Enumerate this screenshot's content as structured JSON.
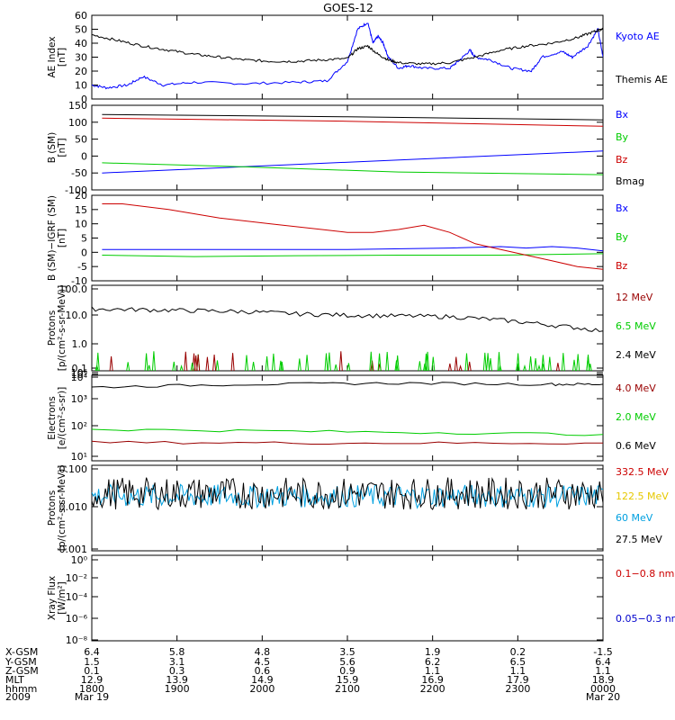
{
  "title": "GOES-12",
  "chart_data": [
    {
      "type": "line",
      "ylabel": [
        "AE Index",
        "[nT]"
      ],
      "ylim": [
        0,
        60
      ],
      "yticks": [
        0,
        10,
        20,
        30,
        40,
        50,
        60
      ],
      "scale": "linear",
      "legend": [
        {
          "label": "Kyoto AE",
          "color": "#0000ff"
        },
        {
          "label": "Themis AE",
          "color": "#000000"
        }
      ],
      "series": [
        {
          "name": "Kyoto AE",
          "color": "#0000ff",
          "x": [
            0,
            0.03,
            0.07,
            0.1,
            0.14,
            0.2,
            0.3,
            0.4,
            0.46,
            0.5,
            0.52,
            0.54,
            0.55,
            0.56,
            0.57,
            0.58,
            0.6,
            0.62,
            0.65,
            0.7,
            0.72,
            0.74,
            0.75,
            0.78,
            0.82,
            0.86,
            0.88,
            0.92,
            0.94,
            0.97,
            0.99,
            1.0
          ],
          "y": [
            10,
            8,
            10,
            16,
            10,
            12,
            11,
            12,
            13,
            27,
            50,
            55,
            40,
            45,
            40,
            30,
            22,
            24,
            22,
            22,
            28,
            35,
            30,
            28,
            22,
            20,
            30,
            34,
            30,
            38,
            50,
            30
          ]
        },
        {
          "name": "Themis AE",
          "color": "#000000",
          "x": [
            0,
            0.05,
            0.1,
            0.15,
            0.2,
            0.25,
            0.3,
            0.35,
            0.4,
            0.45,
            0.5,
            0.52,
            0.54,
            0.56,
            0.58,
            0.6,
            0.65,
            0.7,
            0.75,
            0.8,
            0.85,
            0.9,
            0.95,
            0.98,
            1.0
          ],
          "y": [
            46,
            42,
            38,
            35,
            32,
            30,
            28,
            27,
            27,
            28,
            29,
            36,
            38,
            32,
            28,
            26,
            25,
            26,
            30,
            35,
            38,
            40,
            44,
            48,
            50
          ]
        }
      ]
    },
    {
      "type": "line",
      "ylabel": [
        "B (SM)",
        "[nT]"
      ],
      "ylim": [
        -100,
        150
      ],
      "yticks": [
        -100,
        -50,
        0,
        50,
        100,
        150
      ],
      "scale": "linear",
      "legend": [
        {
          "label": "Bx",
          "color": "#0000ff"
        },
        {
          "label": "By",
          "color": "#00cc00"
        },
        {
          "label": "Bz",
          "color": "#cc0000"
        },
        {
          "label": "Bmag",
          "color": "#000000"
        }
      ],
      "series": [
        {
          "name": "Bx",
          "color": "#0000ff",
          "x": [
            0.02,
            1.0
          ],
          "y": [
            -50,
            15
          ]
        },
        {
          "name": "By",
          "color": "#00cc00",
          "x": [
            0.02,
            0.3,
            0.6,
            1.0
          ],
          "y": [
            -20,
            -32,
            -47,
            -55
          ]
        },
        {
          "name": "Bz",
          "color": "#cc0000",
          "x": [
            0.02,
            0.5,
            1.0
          ],
          "y": [
            112,
            103,
            88
          ]
        },
        {
          "name": "Bmag",
          "color": "#000000",
          "x": [
            0.02,
            0.5,
            1.0
          ],
          "y": [
            123,
            116,
            107
          ]
        }
      ]
    },
    {
      "type": "line",
      "ylabel": [
        "B (SM)−IGRF (SM)",
        "[nT]"
      ],
      "ylim": [
        -10,
        20
      ],
      "yticks": [
        -10,
        -5,
        0,
        5,
        10,
        15,
        20
      ],
      "scale": "linear",
      "legend": [
        {
          "label": "Bx",
          "color": "#0000ff"
        },
        {
          "label": "By",
          "color": "#00cc00"
        },
        {
          "label": "Bz",
          "color": "#cc0000"
        }
      ],
      "series": [
        {
          "name": "Bx",
          "color": "#0000ff",
          "x": [
            0.02,
            0.3,
            0.5,
            0.7,
            0.8,
            0.85,
            0.9,
            0.95,
            1.0
          ],
          "y": [
            1,
            1,
            1,
            1.5,
            2,
            1.5,
            2,
            1.5,
            0.5
          ]
        },
        {
          "name": "By",
          "color": "#00cc00",
          "x": [
            0.02,
            0.2,
            0.4,
            0.6,
            0.8,
            1.0
          ],
          "y": [
            -1,
            -1.5,
            -1.2,
            -1,
            -1,
            -0.5
          ]
        },
        {
          "name": "Bz",
          "color": "#cc0000",
          "x": [
            0.02,
            0.06,
            0.15,
            0.25,
            0.35,
            0.45,
            0.5,
            0.55,
            0.6,
            0.65,
            0.7,
            0.75,
            0.8,
            0.85,
            0.9,
            0.95,
            1.0
          ],
          "y": [
            17,
            17,
            15,
            12,
            10,
            8,
            7,
            7,
            8,
            9.5,
            7,
            3,
            1,
            -1,
            -3,
            -5,
            -6
          ]
        }
      ]
    },
    {
      "type": "line",
      "ylabel": [
        "Protons",
        "[p/(cm²-s-sr-MeV)]"
      ],
      "ylim": [
        0.1,
        100
      ],
      "ytick_labels": [
        "0.1",
        "1.0",
        "10.0",
        "100.0"
      ],
      "scale": "log",
      "legend": [
        {
          "label": "12 MeV",
          "color": "#990000"
        },
        {
          "label": "6.5 MeV",
          "color": "#00cc00"
        },
        {
          "label": "2.4 MeV",
          "color": "#000000"
        }
      ],
      "series": [
        {
          "name": "2.4 MeV",
          "color": "#000000",
          "x": [
            0,
            0.1,
            0.2,
            0.3,
            0.4,
            0.5,
            0.6,
            0.7,
            0.8,
            0.9,
            1.0
          ],
          "y": [
            15,
            14,
            13,
            12,
            10,
            9,
            8.5,
            8,
            6,
            4,
            2.5
          ]
        }
      ]
    },
    {
      "type": "line",
      "ylabel": [
        "Electrons",
        "[e/(cm²-s-sr)]"
      ],
      "ylim": [
        10,
        1000000
      ],
      "ytick_labels": [
        "10¹",
        "10²",
        "10³",
        "10⁴",
        "10⁵",
        "10⁶"
      ],
      "scale": "log",
      "legend": [
        {
          "label": "4.0 MeV",
          "color": "#990000"
        },
        {
          "label": "2.0 MeV",
          "color": "#00cc00"
        },
        {
          "label": "0.6 MeV",
          "color": "#000000"
        }
      ],
      "series": [
        {
          "name": "0.6 MeV",
          "color": "#000000",
          "x": [
            0,
            0.3,
            0.6,
            0.9,
            1.0
          ],
          "y": [
            200000,
            300000,
            350000,
            300000,
            300000
          ]
        },
        {
          "name": "2.0 MeV",
          "color": "#00cc00",
          "x": [
            0,
            0.5,
            1.0
          ],
          "y": [
            700,
            500,
            350
          ]
        },
        {
          "name": "4.0 MeV",
          "color": "#990000",
          "x": [
            0,
            0.5,
            1.0
          ],
          "y": [
            120,
            110,
            110
          ]
        }
      ]
    },
    {
      "type": "line",
      "ylabel": [
        "Protons",
        "[p/(cm²-s-sr-MeV)]"
      ],
      "ylim": [
        0.001,
        0.1
      ],
      "ytick_labels": [
        "0.001",
        "0.010",
        "0.100"
      ],
      "scale": "log",
      "legend": [
        {
          "label": "332.5 MeV",
          "color": "#cc0000"
        },
        {
          "label": "122.5 MeV",
          "color": "#e6c800"
        },
        {
          "label": "60 MeV",
          "color": "#00a0e0"
        },
        {
          "label": "27.5 MeV",
          "color": "#000000"
        }
      ]
    },
    {
      "type": "line",
      "ylabel": [
        "Xray Flux",
        "[W/m²]"
      ],
      "ylim": [
        1e-08,
        1
      ],
      "ytick_labels": [
        "10⁻⁸",
        "10⁻⁶",
        "10⁻⁴",
        "10⁻²",
        "10⁰"
      ],
      "scale": "log",
      "legend": [
        {
          "label": "0.1−0.8 nm",
          "color": "#cc0000"
        },
        {
          "label": "0.05−0.3 nm",
          "color": "#0000cc"
        }
      ],
      "series": []
    }
  ],
  "footer": {
    "row_labels": [
      "X-GSM",
      "Y-GSM",
      "Z-GSM",
      "MLT",
      "hhmm",
      "2009"
    ],
    "columns": [
      [
        "6.4",
        "1.5",
        "0.1",
        "12.9",
        "1800",
        "Mar 19"
      ],
      [
        "5.8",
        "3.1",
        "0.3",
        "13.9",
        "1900",
        ""
      ],
      [
        "4.8",
        "4.5",
        "0.6",
        "14.9",
        "2000",
        ""
      ],
      [
        "3.5",
        "5.6",
        "0.9",
        "15.9",
        "2100",
        ""
      ],
      [
        "1.9",
        "6.2",
        "1.1",
        "16.9",
        "2200",
        ""
      ],
      [
        "0.2",
        "6.5",
        "1.1",
        "17.9",
        "2300",
        ""
      ],
      [
        "-1.5",
        "6.4",
        "1.1",
        "18.9",
        "0000",
        "Mar 20"
      ]
    ]
  }
}
